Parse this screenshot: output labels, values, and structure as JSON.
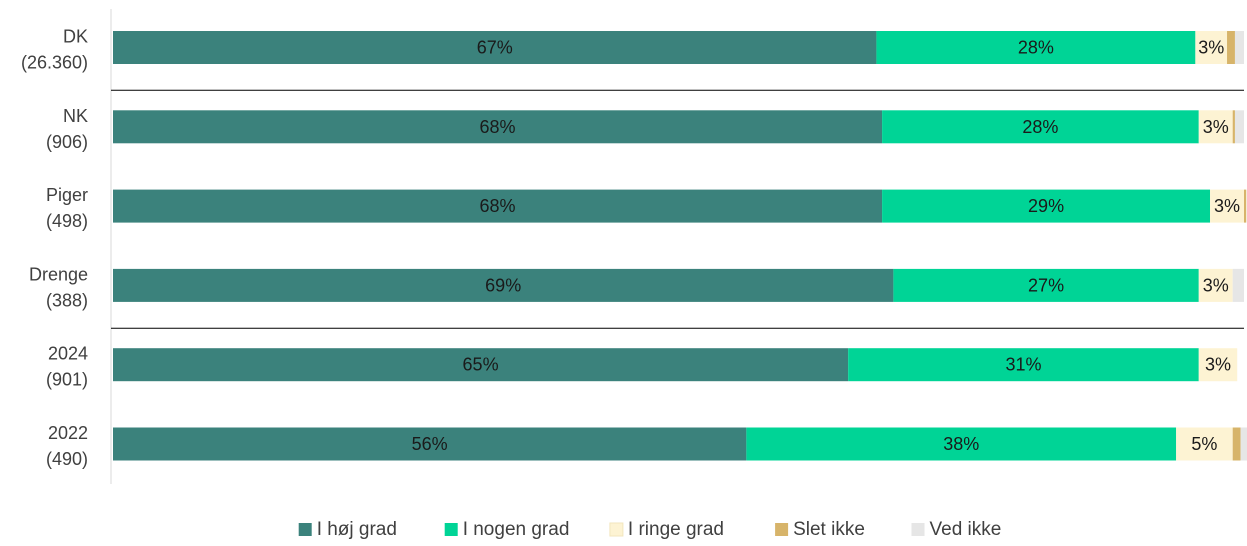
{
  "chart_data": {
    "type": "bar",
    "orientation": "horizontal",
    "stacked": true,
    "percent": true,
    "categories": [
      [
        "DK",
        "(26.360)"
      ],
      [
        "NK",
        "(906)"
      ],
      [
        "Piger",
        "(498)"
      ],
      [
        "Drenge",
        "(388)"
      ],
      [
        "2024",
        "(901)"
      ],
      [
        "2022",
        "(490)"
      ]
    ],
    "series": [
      {
        "name": "I høj grad",
        "color": "#3b827c",
        "values": [
          67.5,
          68,
          68,
          69,
          65,
          56
        ],
        "labels": [
          "67%",
          "68%",
          "68%",
          "69%",
          "65%",
          "56%"
        ]
      },
      {
        "name": "I nogen grad",
        "color": "#00d496",
        "values": [
          28.2,
          28,
          29,
          27,
          31,
          38
        ],
        "labels": [
          "28%",
          "28%",
          "29%",
          "27%",
          "31%",
          "38%"
        ]
      },
      {
        "name": "I ringe grad",
        "color": "#fdf3d3",
        "values": [
          2.8,
          3,
          3,
          3,
          3.4,
          5
        ],
        "labels": [
          "3%",
          "3%",
          "3%",
          "3%",
          "3%",
          "5%"
        ]
      },
      {
        "name": "Slet ikke",
        "color": "#d7b46a",
        "values": [
          0.7,
          0.2,
          0.2,
          0,
          0,
          0.7
        ],
        "labels": [
          "",
          "",
          "",
          "",
          "",
          ""
        ]
      },
      {
        "name": "Ved ikke",
        "color": "#e6e6e6",
        "values": [
          0.8,
          0.8,
          0,
          1,
          0,
          0.6
        ],
        "labels": [
          "",
          "",
          "",
          "",
          "",
          ""
        ]
      }
    ],
    "xlim": [
      0,
      100
    ],
    "separators_after": [
      0,
      3
    ],
    "legend_position": "bottom"
  }
}
